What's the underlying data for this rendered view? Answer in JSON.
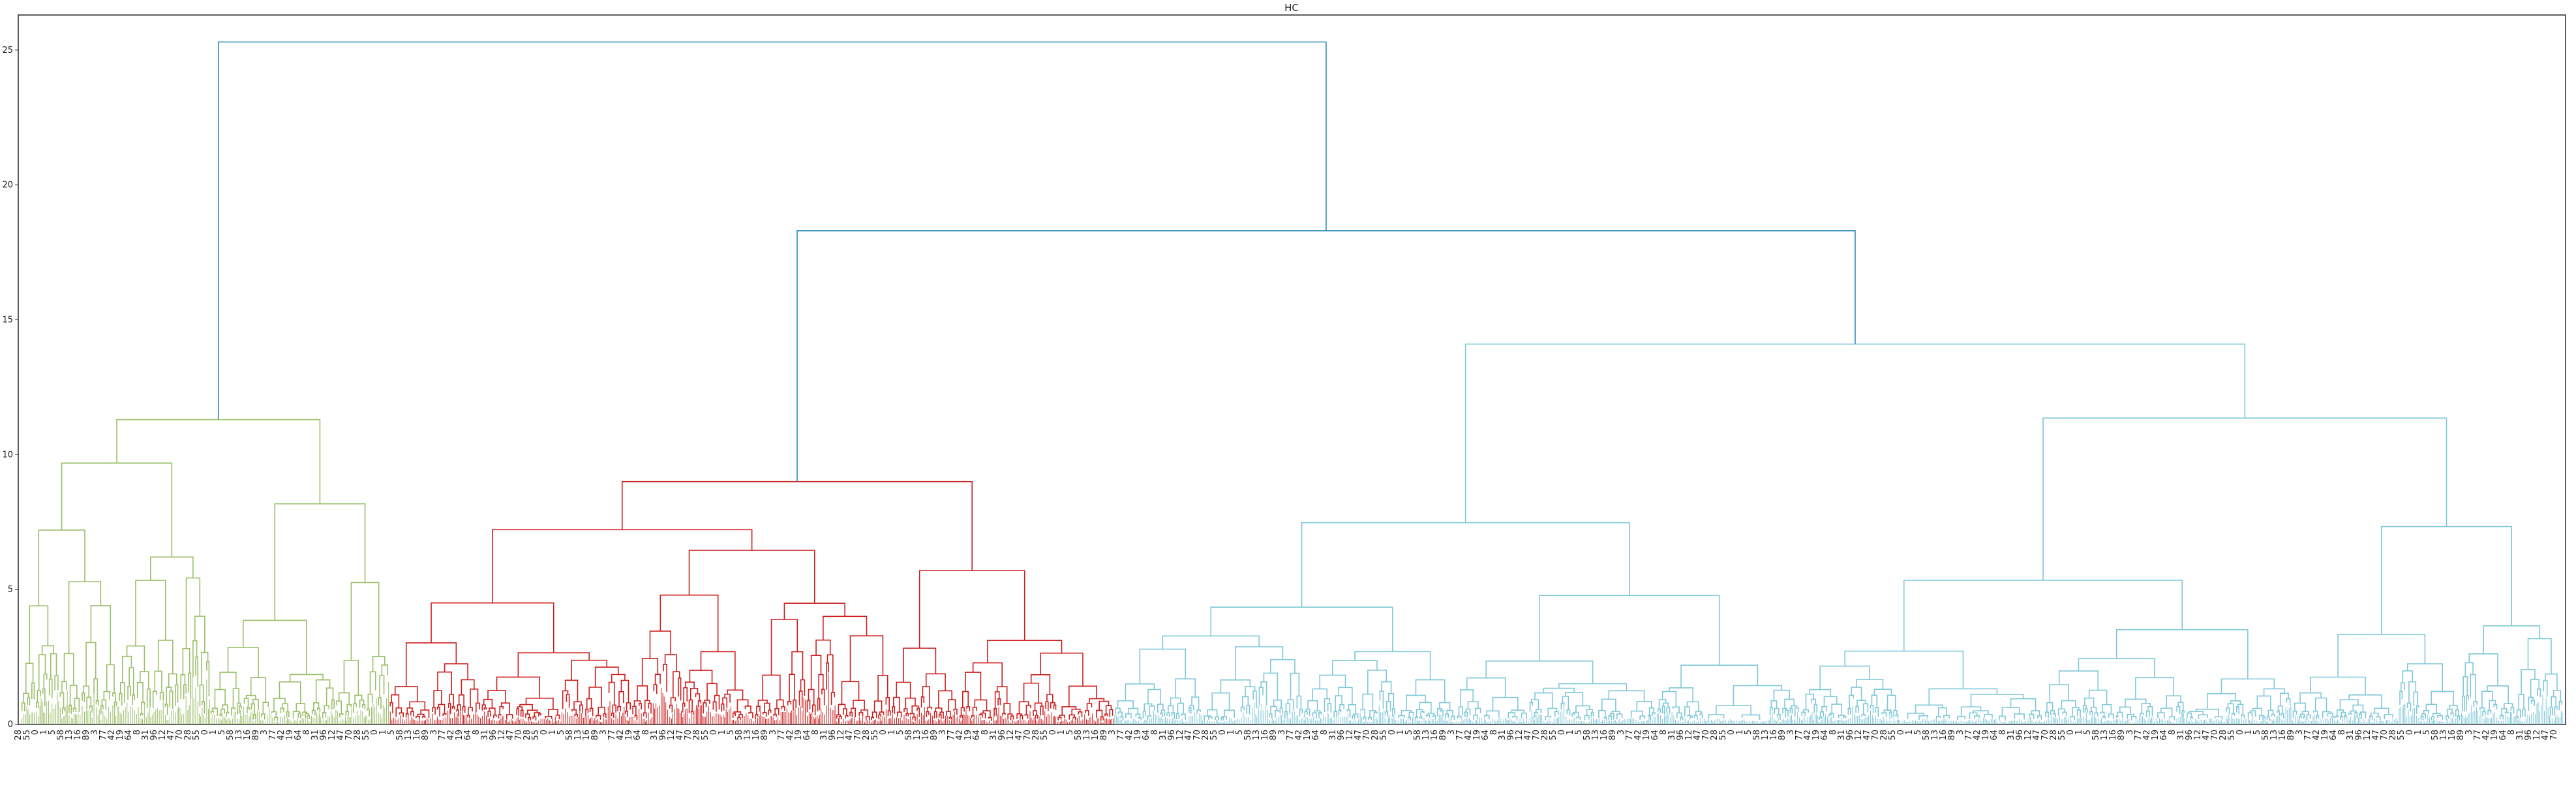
{
  "chart_data": {
    "type": "dendrogram",
    "title": "HC",
    "xlabel": "",
    "ylabel": "",
    "ylim": [
      0,
      26.3
    ],
    "yticks": [
      0,
      5,
      10,
      15,
      20,
      25
    ],
    "grid": false,
    "legend": "none",
    "colors": {
      "green_cluster": "#9bbf6b",
      "red_cluster": "#cc1f1f",
      "cyan_cluster": "#80c8d8",
      "root_links": "#2e8bb8",
      "axes": "#262626"
    },
    "clusters": [
      {
        "color_key": "green_cluster",
        "leaf_share": 0.145,
        "top_height": 11.3
      },
      {
        "color_key": "red_cluster",
        "leaf_share": 0.285,
        "top_height": 9.0
      },
      {
        "color_key": "cyan_cluster",
        "leaf_share": 0.57,
        "top_height": 14.1
      }
    ],
    "root_merges": [
      {
        "join": [
          "red_cluster",
          "cyan_cluster"
        ],
        "height": 18.3
      },
      {
        "join": [
          "green_cluster",
          "red+cyan"
        ],
        "height": 25.3
      }
    ],
    "sub_merges": {
      "green_cluster": [
        7.4,
        8.6,
        5.5,
        5.6,
        5.4,
        4.4,
        4.1,
        3.5
      ],
      "red_cluster": [
        6.0,
        5.8,
        4.6,
        4.1,
        3.8,
        3.5,
        2.5,
        2.4
      ],
      "cyan_cluster": [
        10.5,
        8.8,
        9.3,
        7.2,
        6.8,
        6.7,
        5.3,
        4.4
      ]
    },
    "leaf_labels_sample": [
      "28",
      "55",
      "0",
      "1",
      "5",
      "58",
      "13",
      "16",
      "89",
      "3",
      "77",
      "42",
      "19",
      "64",
      "8",
      "31",
      "96",
      "12",
      "47",
      "70"
    ]
  }
}
